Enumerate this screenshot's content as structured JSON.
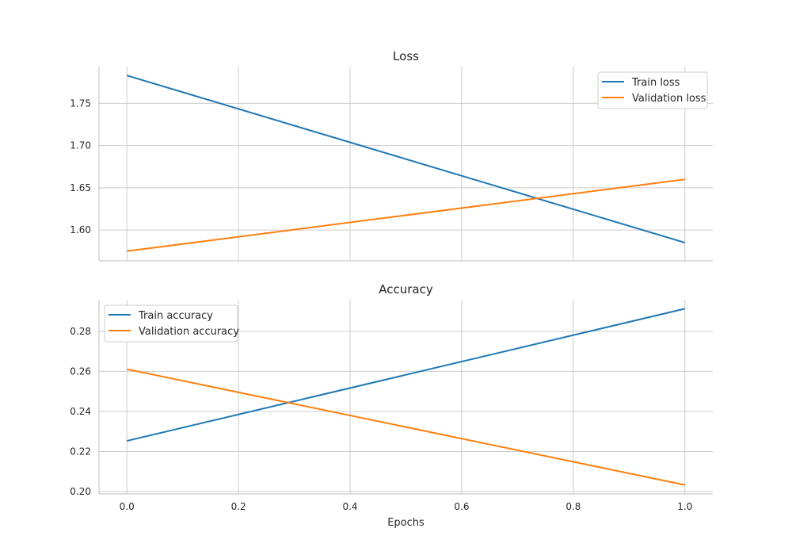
{
  "chart_data": [
    {
      "type": "line",
      "title": "Loss",
      "xlabel": "",
      "ylabel": "",
      "xlim": [
        -0.05,
        1.05
      ],
      "ylim": [
        1.5635,
        1.7935
      ],
      "xticks": [
        0.0,
        0.2,
        0.4,
        0.6,
        0.8,
        1.0
      ],
      "xtick_labels": [
        "0.0",
        "0.2",
        "0.4",
        "0.6",
        "0.8",
        "1.0"
      ],
      "xticks_visible": false,
      "yticks": [
        1.6,
        1.65,
        1.7,
        1.75
      ],
      "ytick_labels": [
        "1.60",
        "1.65",
        "1.70",
        "1.75"
      ],
      "grid": true,
      "legend_position": "top-right",
      "x": [
        0.0,
        1.0
      ],
      "series": [
        {
          "name": "Train loss",
          "values": [
            1.783,
            1.585
          ],
          "color": "#1f77b4"
        },
        {
          "name": "Validation loss",
          "values": [
            1.575,
            1.66
          ],
          "color": "#ff7f0e"
        }
      ]
    },
    {
      "type": "line",
      "title": "Accuracy",
      "xlabel": "Epochs",
      "ylabel": "",
      "xlim": [
        -0.05,
        1.05
      ],
      "ylim": [
        0.1988,
        0.2958
      ],
      "xticks": [
        0.0,
        0.2,
        0.4,
        0.6,
        0.8,
        1.0
      ],
      "xtick_labels": [
        "0.0",
        "0.2",
        "0.4",
        "0.6",
        "0.8",
        "1.0"
      ],
      "xticks_visible": true,
      "yticks": [
        0.2,
        0.22,
        0.24,
        0.26,
        0.28
      ],
      "ytick_labels": [
        "0.20",
        "0.22",
        "0.24",
        "0.26",
        "0.28"
      ],
      "grid": true,
      "legend_position": "top-left",
      "x": [
        0.0,
        1.0
      ],
      "series": [
        {
          "name": "Train accuracy",
          "values": [
            0.2253,
            0.2913
          ],
          "color": "#1f77b4"
        },
        {
          "name": "Validation accuracy",
          "values": [
            0.2611,
            0.2033
          ],
          "color": "#ff7f0e"
        }
      ]
    }
  ]
}
